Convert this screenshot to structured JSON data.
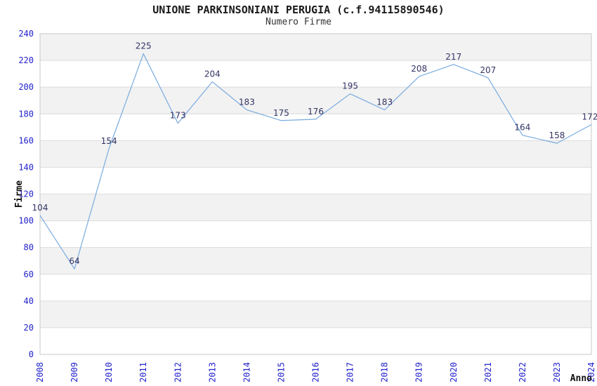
{
  "header": {
    "title": "UNIONE PARKINSONIANI PERUGIA (c.f.94115890546)",
    "subtitle": "Numero Firme"
  },
  "chart_data": {
    "type": "line",
    "title": "UNIONE PARKINSONIANI PERUGIA (c.f.94115890546)",
    "subtitle": "Numero Firme",
    "xlabel": "Anno",
    "ylabel": "Firme",
    "x": [
      "2008",
      "2009",
      "2010",
      "2011",
      "2012",
      "2013",
      "2014",
      "2015",
      "2016",
      "2017",
      "2018",
      "2019",
      "2020",
      "2021",
      "2022",
      "2023",
      "2024"
    ],
    "series": [
      {
        "name": "Numero Firme",
        "values": [
          104,
          64,
          154,
          225,
          173,
          204,
          183,
          175,
          176,
          195,
          183,
          208,
          217,
          207,
          164,
          158,
          172
        ]
      }
    ],
    "ylim": [
      0,
      240
    ],
    "ytick_step": 20,
    "grid": true,
    "legend_position": "none",
    "colors": {
      "line": "#79abdf",
      "band": "#f2f2f2",
      "gridline": "#dcdcdc",
      "plot_border": "#c8c8c8",
      "tick_label": "#2222cc",
      "data_label": "#333366",
      "axis_title": "#111111",
      "background": "#ffffff"
    }
  }
}
